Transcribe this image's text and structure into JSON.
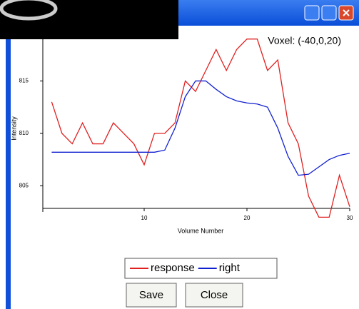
{
  "chart_data": {
    "type": "line",
    "annotation": "Voxel: (-40,0,20)",
    "x_label": "Volume Number",
    "y_label": "Intensity",
    "x": [
      1,
      2,
      3,
      4,
      5,
      6,
      7,
      8,
      9,
      10,
      11,
      12,
      13,
      14,
      15,
      16,
      17,
      18,
      19,
      20,
      21,
      22,
      23,
      24,
      25,
      26,
      27,
      28,
      29,
      30
    ],
    "series": [
      {
        "name": "response",
        "color": "#e02020",
        "values": [
          813,
          810,
          809,
          811,
          809,
          809,
          811,
          810,
          809,
          807,
          810,
          810,
          811,
          815,
          814,
          816,
          818,
          816,
          818,
          819,
          819,
          816,
          817,
          811,
          809,
          804,
          802,
          802,
          806,
          803
        ]
      },
      {
        "name": "right",
        "color": "#1020d0",
        "values": [
          808.2,
          808.2,
          808.2,
          808.2,
          808.2,
          808.2,
          808.2,
          808.2,
          808.2,
          808.2,
          808.2,
          808.4,
          810.5,
          813.5,
          815,
          815,
          814.2,
          813.5,
          813.1,
          812.9,
          812.8,
          812.5,
          810.5,
          807.8,
          806,
          806.1,
          806.8,
          807.5,
          807.9,
          808.1
        ]
      }
    ],
    "xlim": [
      0,
      30
    ],
    "xticks": [
      10,
      20,
      30
    ],
    "ylim": [
      802.5,
      820
    ],
    "yticks": [
      805,
      810,
      815
    ],
    "legend": "bottom"
  },
  "buttons": [
    "Save",
    "Close"
  ]
}
